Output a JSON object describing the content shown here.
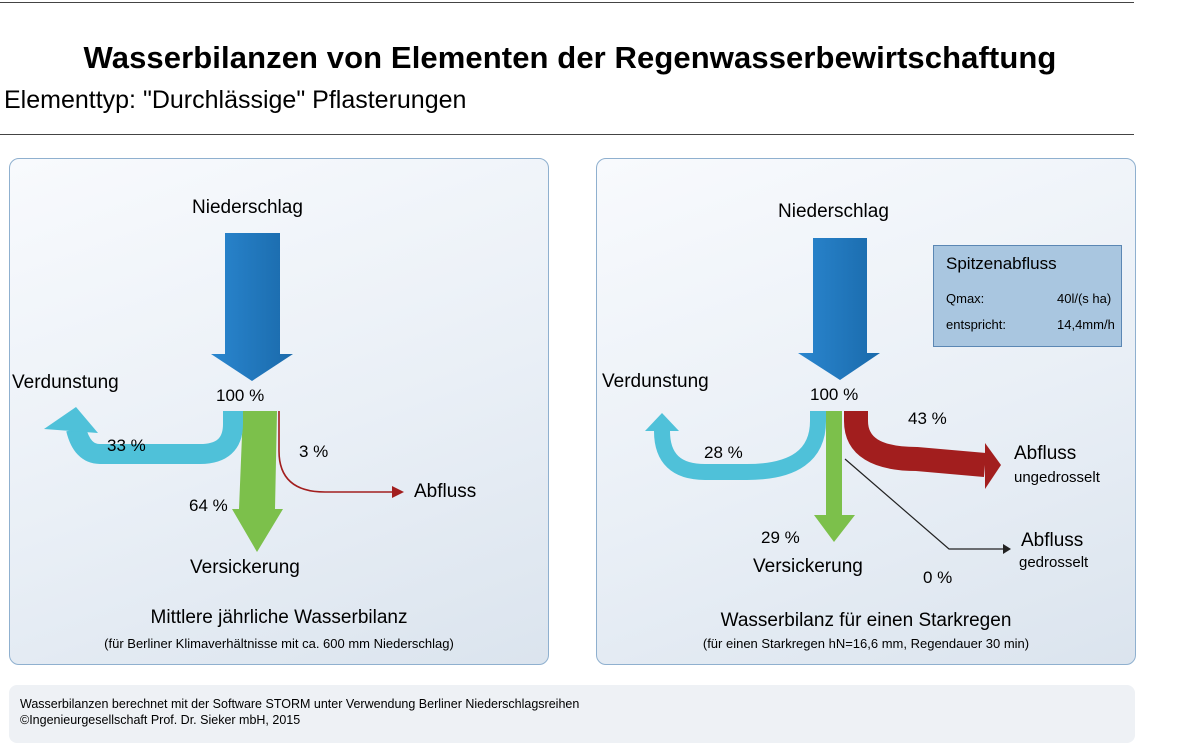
{
  "header": {
    "title": "Wasserbilanzen von Elementen der Regenwasserbewirtschaftung",
    "subtitle": "Elementtyp:  \"Durchlässige\" Pflasterungen"
  },
  "left_panel": {
    "niederschlag": "Niederschlag",
    "total": "100 %",
    "verdunstung": "Verdunstung",
    "verdunstung_pct": "33 %",
    "versickerung": "Versickerung",
    "versickerung_pct": "64 %",
    "abfluss": "Abfluss",
    "abfluss_pct": "3 %",
    "caption": "Mittlere jährliche Wasserbilanz",
    "caption_sub": "(für Berliner Klimaverhältnisse mit ca. 600 mm Niederschlag)"
  },
  "right_panel": {
    "niederschlag": "Niederschlag",
    "total": "100 %",
    "verdunstung": "Verdunstung",
    "verdunstung_pct": "28 %",
    "versickerung": "Versickerung",
    "versickerung_pct": "29 %",
    "abfluss_unged": "Abfluss",
    "abfluss_unged_sub": "ungedrosselt",
    "abfluss_unged_pct": "43 %",
    "abfluss_ged": "Abfluss",
    "abfluss_ged_sub": "gedrosselt",
    "abfluss_ged_pct": "0 %",
    "peak": {
      "title": "Spitzenabfluss",
      "qmax_label": "Qmax:",
      "qmax_value": "40l/(s ha)",
      "equiv_label": "entspricht:",
      "equiv_value": "14,4mm/h"
    },
    "caption": "Wasserbilanz für einen Starkregen",
    "caption_sub": "(für einen Starkregen hN=16,6 mm, Regendauer 30 min)"
  },
  "footer": {
    "line1": "Wasserbilanzen berechnet mit der Software STORM unter Verwendung Berliner Niederschlagsreihen",
    "line2": "©Ingenieurgesellschaft Prof. Dr. Sieker mbH, 2015"
  },
  "colors": {
    "niederschlag": "#1f78c1",
    "verdunstung": "#4fc1d9",
    "versickerung": "#7cc04b",
    "abfluss": "#a21e1e"
  }
}
